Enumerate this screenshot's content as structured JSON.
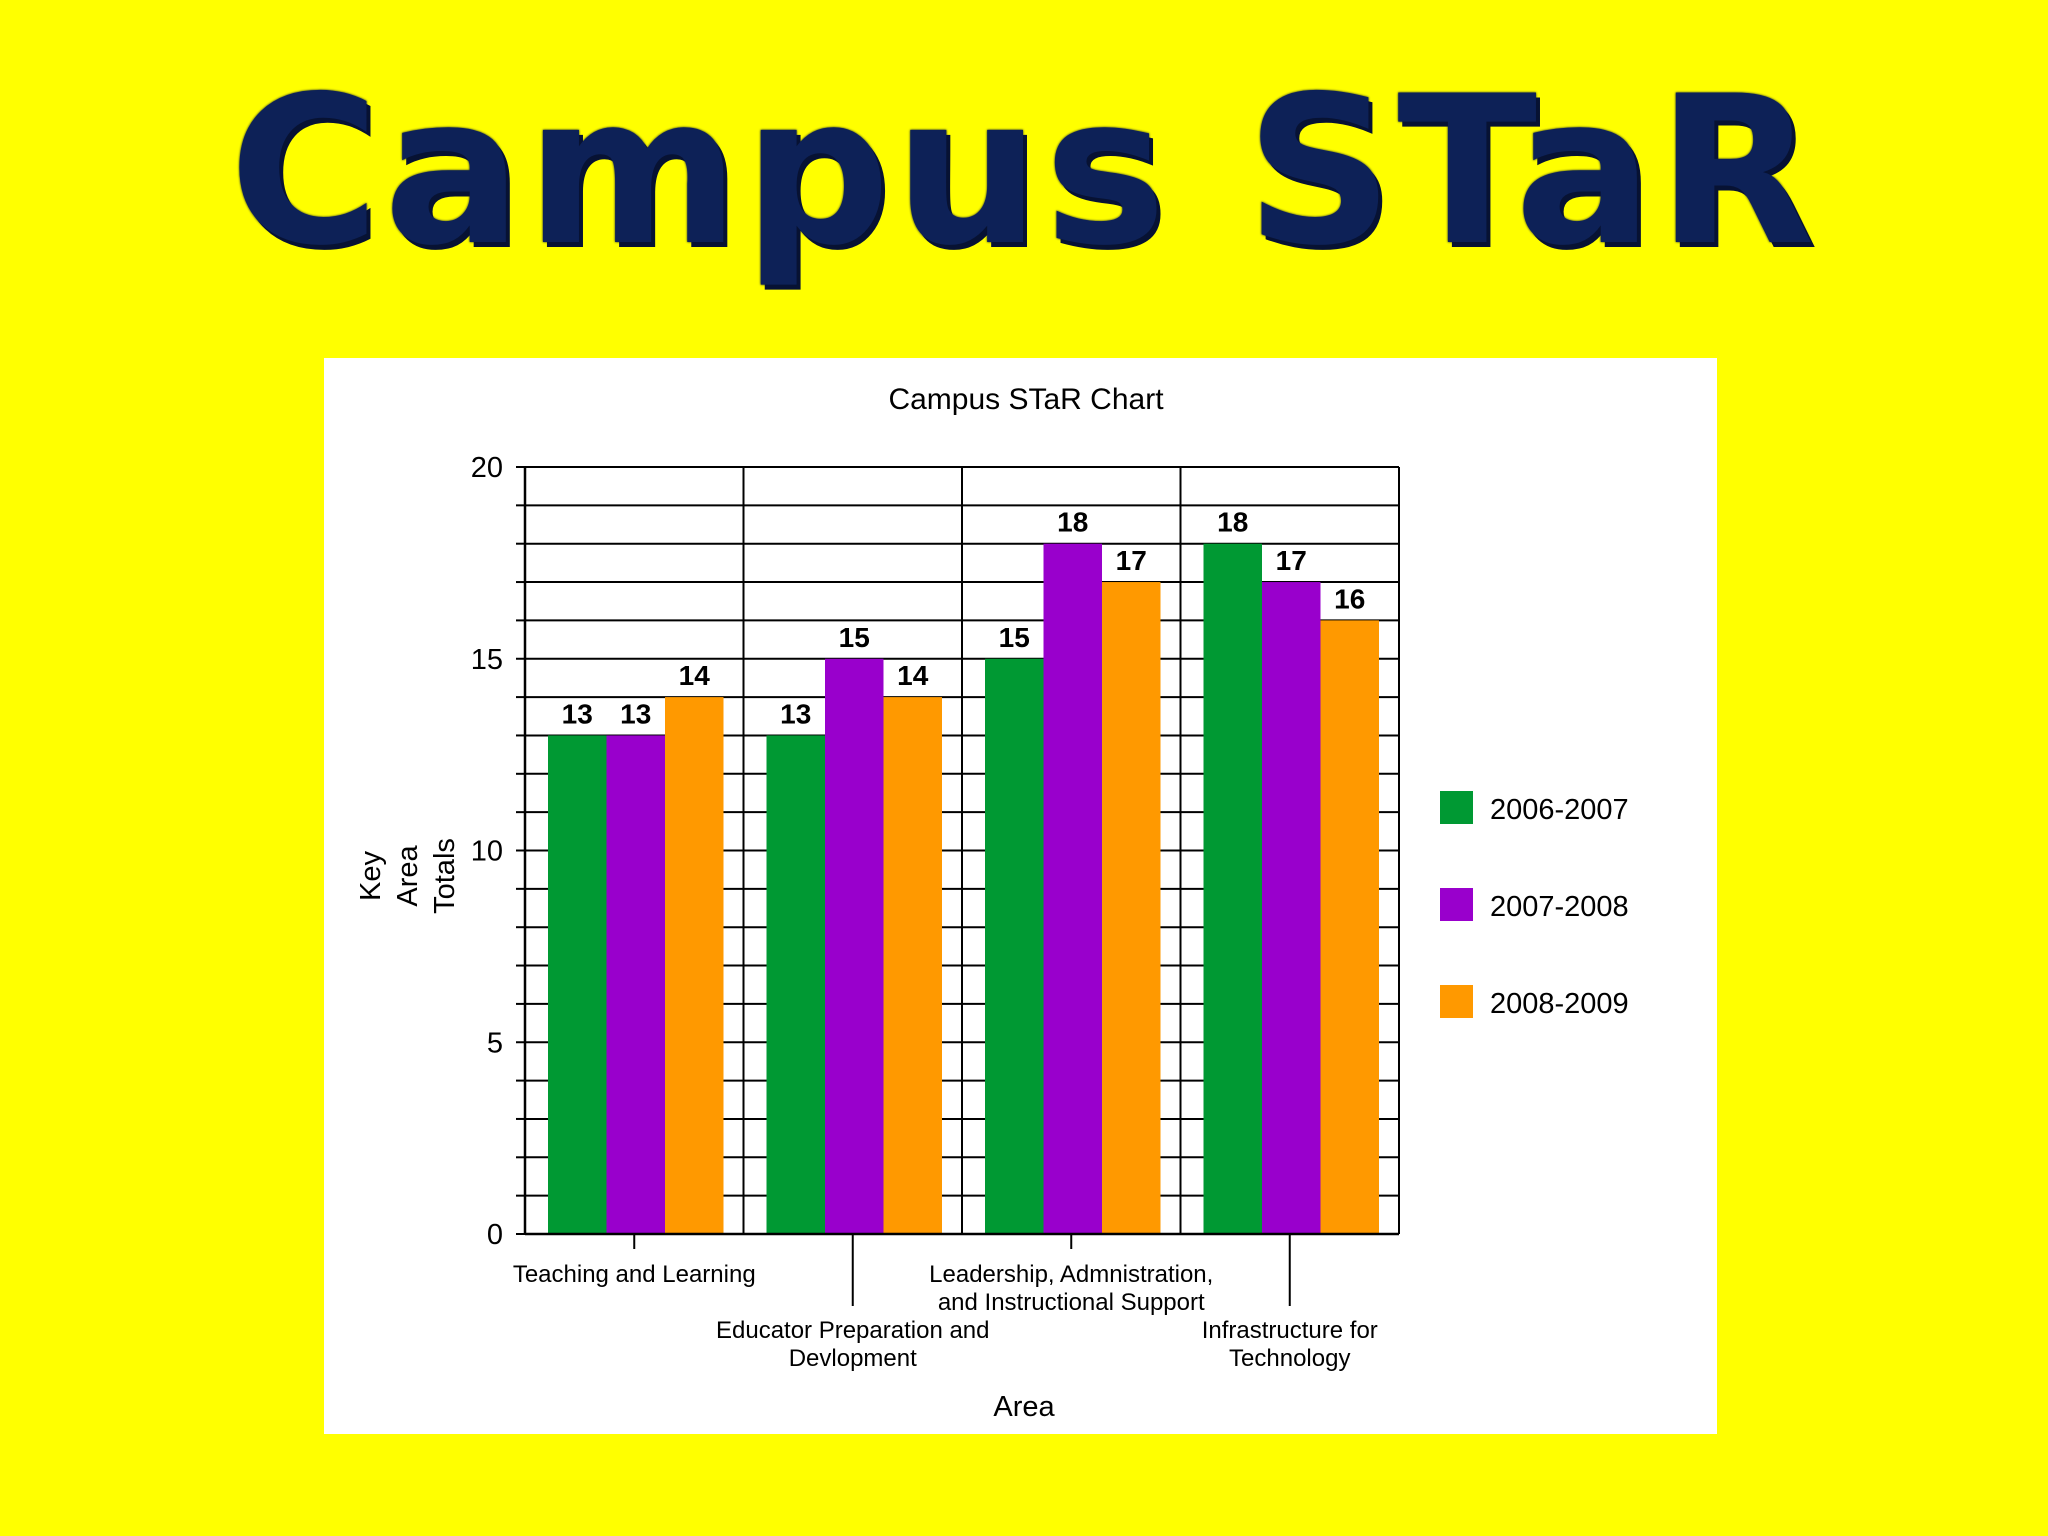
{
  "slide": {
    "title": "Campus STaR"
  },
  "colors": {
    "background": "#FFFF00",
    "title": "#0d2157",
    "panel": "#FFFFFF"
  },
  "chart_data": {
    "type": "bar",
    "title": "Campus STaR Chart",
    "xlabel": "Area",
    "ylabel": "Key Area Totals",
    "ylim": [
      0,
      20
    ],
    "yticks": [
      0,
      5,
      10,
      15,
      20
    ],
    "grid": true,
    "legend_position": "right",
    "categories": [
      "Teaching and Learning",
      "Educator Preparation and Devlopment",
      "Leadership, Admnistration, and Instructional Support",
      "Infrastructure for Technology"
    ],
    "category_label_lines": [
      [
        "Teaching and Learning"
      ],
      [
        "Educator Preparation and",
        "Devlopment"
      ],
      [
        "Leadership, Admnistration,",
        "and Instructional Support"
      ],
      [
        "Infrastructure for",
        "Technology"
      ]
    ],
    "series": [
      {
        "name": "2006-2007",
        "color": "#009933",
        "values": [
          13,
          13,
          15,
          18
        ]
      },
      {
        "name": "2007-2008",
        "color": "#9900CC",
        "values": [
          13,
          15,
          18,
          17
        ]
      },
      {
        "name": "2008-2009",
        "color": "#FF9900",
        "values": [
          14,
          14,
          17,
          16
        ]
      }
    ]
  }
}
